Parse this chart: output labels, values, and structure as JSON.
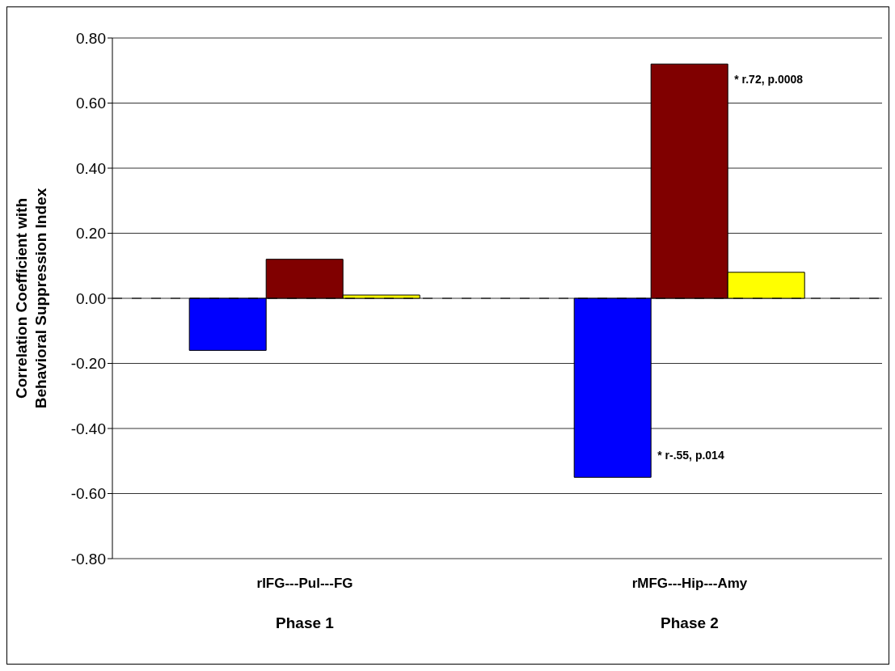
{
  "chart_data": {
    "type": "bar",
    "ylabel": "Correlation Coefficient with\nBehavioral Suppression Index",
    "categories": [
      "rIFG---Pul---FG",
      "rMFG---Hip---Amy"
    ],
    "series": [
      {
        "color": "#0000ff",
        "values": [
          -0.16,
          -0.55
        ]
      },
      {
        "color": "#800000",
        "values": [
          0.12,
          0.72
        ]
      },
      {
        "color": "#ffff00",
        "values": [
          0.01,
          0.08
        ]
      }
    ],
    "ylim": [
      -0.8,
      0.8
    ],
    "yticks": [
      {
        "value": -0.8,
        "label": "-0.80"
      },
      {
        "value": -0.6,
        "label": "-0.60"
      },
      {
        "value": -0.4,
        "label": "-0.40"
      },
      {
        "value": -0.2,
        "label": "-0.20"
      },
      {
        "value": 0,
        "label": "0.00"
      },
      {
        "value": 0.2,
        "label": "0.20"
      },
      {
        "value": 0.4,
        "label": "0.40"
      },
      {
        "value": 0.6,
        "label": "0.60"
      },
      {
        "value": 0.8,
        "label": "0.80"
      }
    ],
    "grid": "y",
    "legend": false,
    "ref_lines": [
      {
        "axis": "y",
        "value": 0,
        "color": "#000000",
        "line_style": "dashed"
      }
    ],
    "annotations": [
      "* r.72, p.0008",
      "* r-.55, p.014",
      "Phase 1",
      "Phase 2"
    ]
  }
}
